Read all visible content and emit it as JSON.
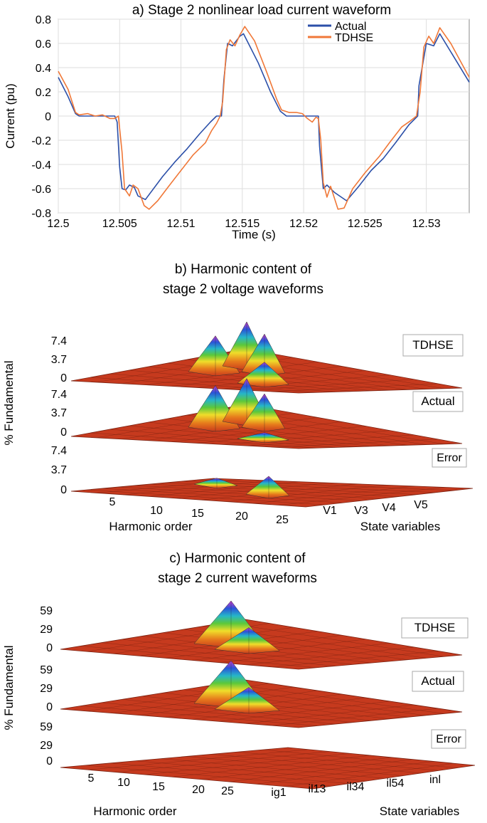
{
  "chart_data": [
    {
      "type": "line",
      "title": "a) Stage 2 nonlinear load current waveform",
      "xlabel": "Time (s)",
      "ylabel": "Current (pu)",
      "xlim": [
        12.5,
        12.5335
      ],
      "ylim": [
        -0.8,
        0.8
      ],
      "xticks": [
        "12.5",
        "12.505",
        "12.51",
        "12.515",
        "12.52",
        "12.525",
        "12.53"
      ],
      "yticks": [
        "0.8",
        "0.6",
        "0.4",
        "0.2",
        "0",
        "-0.2",
        "-0.4",
        "-0.6",
        "-0.8"
      ],
      "grid": true,
      "legend": "top-right",
      "series": [
        {
          "name": "Actual",
          "color": "#2b4fa8",
          "x": [
            12.5,
            12.5008,
            12.5014,
            12.5017,
            12.5022,
            12.5046,
            12.5048,
            12.505,
            12.5052,
            12.5055,
            12.5058,
            12.5062,
            12.5065,
            12.5071,
            12.5085,
            12.5095,
            12.5105,
            12.5115,
            12.5124,
            12.5129,
            12.5131,
            12.5133,
            12.5135,
            12.5138,
            12.5142,
            12.5148,
            12.5151,
            12.5163,
            12.5173,
            12.5181,
            12.5186,
            12.5212,
            12.5213,
            12.5216,
            12.5219,
            12.5225,
            12.5235,
            12.5245,
            12.5255,
            12.5265,
            12.5275,
            12.5286,
            12.5293,
            12.5294,
            12.53,
            12.5306,
            12.5311,
            12.5335
          ],
          "y": [
            0.32,
            0.16,
            0.02,
            0.0,
            0.0,
            0.0,
            -0.05,
            -0.42,
            -0.6,
            -0.61,
            -0.57,
            -0.59,
            -0.66,
            -0.69,
            -0.5,
            -0.38,
            -0.27,
            -0.15,
            -0.05,
            0.0,
            0.0,
            0.0,
            0.3,
            0.6,
            0.58,
            0.66,
            0.68,
            0.44,
            0.2,
            0.04,
            0.0,
            0.0,
            -0.25,
            -0.6,
            -0.57,
            -0.63,
            -0.7,
            -0.58,
            -0.45,
            -0.35,
            -0.22,
            -0.07,
            0.0,
            0.25,
            0.6,
            0.58,
            0.68,
            0.28
          ]
        },
        {
          "name": "TDHSE",
          "color": "#f07838",
          "x": [
            12.5,
            12.5008,
            12.5014,
            12.5017,
            12.5024,
            12.503,
            12.5036,
            12.5042,
            12.5046,
            12.5049,
            12.5052,
            12.5054,
            12.5058,
            12.5061,
            12.5065,
            12.507,
            12.5074,
            12.5081,
            12.509,
            12.51,
            12.511,
            12.512,
            12.5125,
            12.5129,
            12.5131,
            12.5132,
            12.5134,
            12.5137,
            12.514,
            12.5144,
            12.5148,
            12.5152,
            12.516,
            12.517,
            12.5178,
            12.5182,
            12.5188,
            12.5194,
            12.5199,
            12.5203,
            12.5207,
            12.521,
            12.5212,
            12.5214,
            12.5216,
            12.5219,
            12.5222,
            12.5228,
            12.5233,
            12.524,
            12.525,
            12.5262,
            12.527,
            12.528,
            12.5287,
            12.5292,
            12.5295,
            12.5298,
            12.5302,
            12.5306,
            12.5311,
            12.532,
            12.5335
          ],
          "y": [
            0.37,
            0.22,
            0.03,
            0.01,
            0.02,
            0.0,
            0.01,
            -0.02,
            -0.02,
            0.0,
            -0.3,
            -0.6,
            -0.66,
            -0.57,
            -0.6,
            -0.74,
            -0.77,
            -0.7,
            -0.58,
            -0.45,
            -0.32,
            -0.22,
            -0.12,
            -0.06,
            -0.02,
            0.0,
            0.12,
            0.55,
            0.63,
            0.58,
            0.67,
            0.74,
            0.62,
            0.36,
            0.14,
            0.05,
            0.03,
            0.03,
            0.02,
            -0.02,
            -0.05,
            -0.01,
            -0.02,
            -0.2,
            -0.55,
            -0.67,
            -0.58,
            -0.77,
            -0.76,
            -0.6,
            -0.47,
            -0.33,
            -0.22,
            -0.09,
            -0.04,
            0.0,
            0.2,
            0.57,
            0.66,
            0.6,
            0.73,
            0.6,
            0.32
          ]
        }
      ]
    },
    {
      "type": "surface",
      "title_line1": "b) Harmonic content of",
      "title_line2": "stage 2 voltage waveforms",
      "ylabel": "% Fundamental",
      "xlabel": "Harmonic order",
      "zlabel": "State variables",
      "harmonic_ticks": [
        "5",
        "10",
        "15",
        "20",
        "25"
      ],
      "state_variables": [
        "V1",
        "V3",
        "V4",
        "V5"
      ],
      "z_ticks": [
        "7.4",
        "3.7",
        "0"
      ],
      "panels": [
        {
          "label": "TDHSE",
          "peaks": [
            {
              "harmonic": 13,
              "value": 6.0
            },
            {
              "harmonic": 17,
              "value": 7.4
            },
            {
              "harmonic": 19,
              "value": 6.3
            },
            {
              "harmonic": 23,
              "value": 3.5
            }
          ]
        },
        {
          "label": "Actual",
          "peaks": [
            {
              "harmonic": 13,
              "value": 7.0
            },
            {
              "harmonic": 17,
              "value": 7.2
            },
            {
              "harmonic": 19,
              "value": 5.6
            },
            {
              "harmonic": 23,
              "value": 1.0
            }
          ]
        },
        {
          "label": "Error",
          "peaks": [
            {
              "harmonic": 17,
              "value": 1.0
            },
            {
              "harmonic": 23,
              "value": 3.0
            }
          ]
        }
      ]
    },
    {
      "type": "surface",
      "title_line1": "c) Harmonic content of",
      "title_line2": "stage  2 current waveforms",
      "ylabel": "% Fundamental",
      "xlabel": "Harmonic order",
      "zlabel": "State variables",
      "harmonic_ticks": [
        "5",
        "10",
        "15",
        "20",
        "25"
      ],
      "state_variables": [
        "ig1",
        "il13",
        "il34",
        "il54",
        "inl"
      ],
      "z_ticks": [
        "59",
        "29",
        "0"
      ],
      "panels": [
        {
          "label": "TDHSE",
          "peaks": [
            {
              "harmonic": 17,
              "value": 59
            },
            {
              "harmonic": 21,
              "value": 30
            }
          ]
        },
        {
          "label": "Actual",
          "peaks": [
            {
              "harmonic": 17,
              "value": 59
            },
            {
              "harmonic": 21,
              "value": 30
            }
          ]
        },
        {
          "label": "Error",
          "peaks": []
        }
      ]
    }
  ]
}
